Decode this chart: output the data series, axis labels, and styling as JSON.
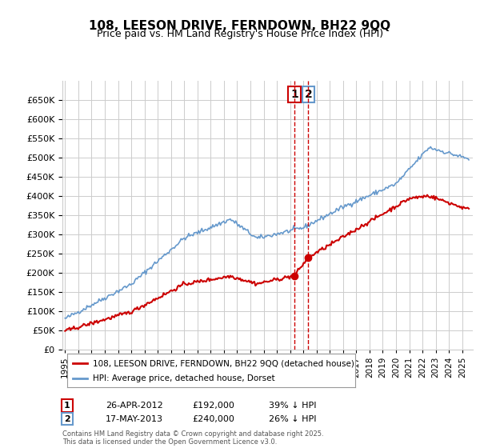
{
  "title": "108, LEESON DRIVE, FERNDOWN, BH22 9QQ",
  "subtitle": "Price paid vs. HM Land Registry's House Price Index (HPI)",
  "legend_label_red": "108, LEESON DRIVE, FERNDOWN, BH22 9QQ (detached house)",
  "legend_label_blue": "HPI: Average price, detached house, Dorset",
  "transaction1_label": "1",
  "transaction1_date": "26-APR-2012",
  "transaction1_price": "£192,000",
  "transaction1_pct": "39% ↓ HPI",
  "transaction2_label": "2",
  "transaction2_date": "17-MAY-2013",
  "transaction2_price": "£240,000",
  "transaction2_pct": "26% ↓ HPI",
  "footer": "Contains HM Land Registry data © Crown copyright and database right 2025.\nThis data is licensed under the Open Government Licence v3.0.",
  "ylim": [
    0,
    700000
  ],
  "yticks": [
    0,
    50000,
    100000,
    150000,
    200000,
    250000,
    300000,
    350000,
    400000,
    450000,
    500000,
    550000,
    600000,
    650000
  ],
  "color_red": "#cc0000",
  "color_blue": "#6699cc",
  "color_vline": "#cc0000",
  "bg_color": "#ffffff",
  "grid_color": "#cccccc",
  "marker1_date_num": 2012.32,
  "marker2_date_num": 2013.38,
  "marker1_price": 192000,
  "marker2_price": 240000
}
